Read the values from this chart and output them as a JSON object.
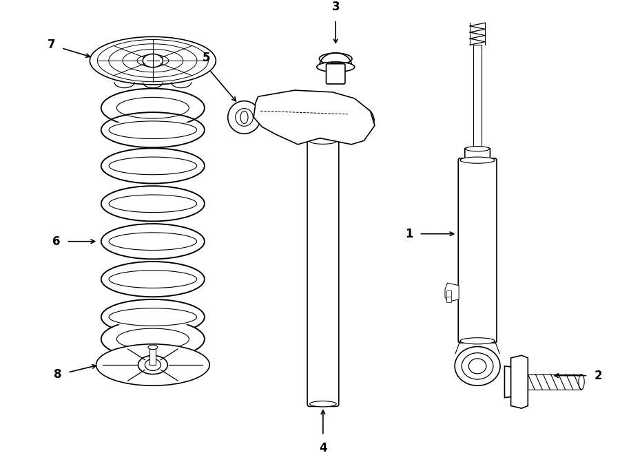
{
  "background_color": "#ffffff",
  "line_color": "#000000",
  "line_width": 1.2,
  "parts": [
    "1",
    "2",
    "3",
    "4",
    "5",
    "6",
    "7",
    "8"
  ],
  "layout": {
    "xlim": [
      0,
      9
    ],
    "ylim": [
      0,
      6.61
    ],
    "figsize": [
      9.0,
      6.61
    ]
  }
}
